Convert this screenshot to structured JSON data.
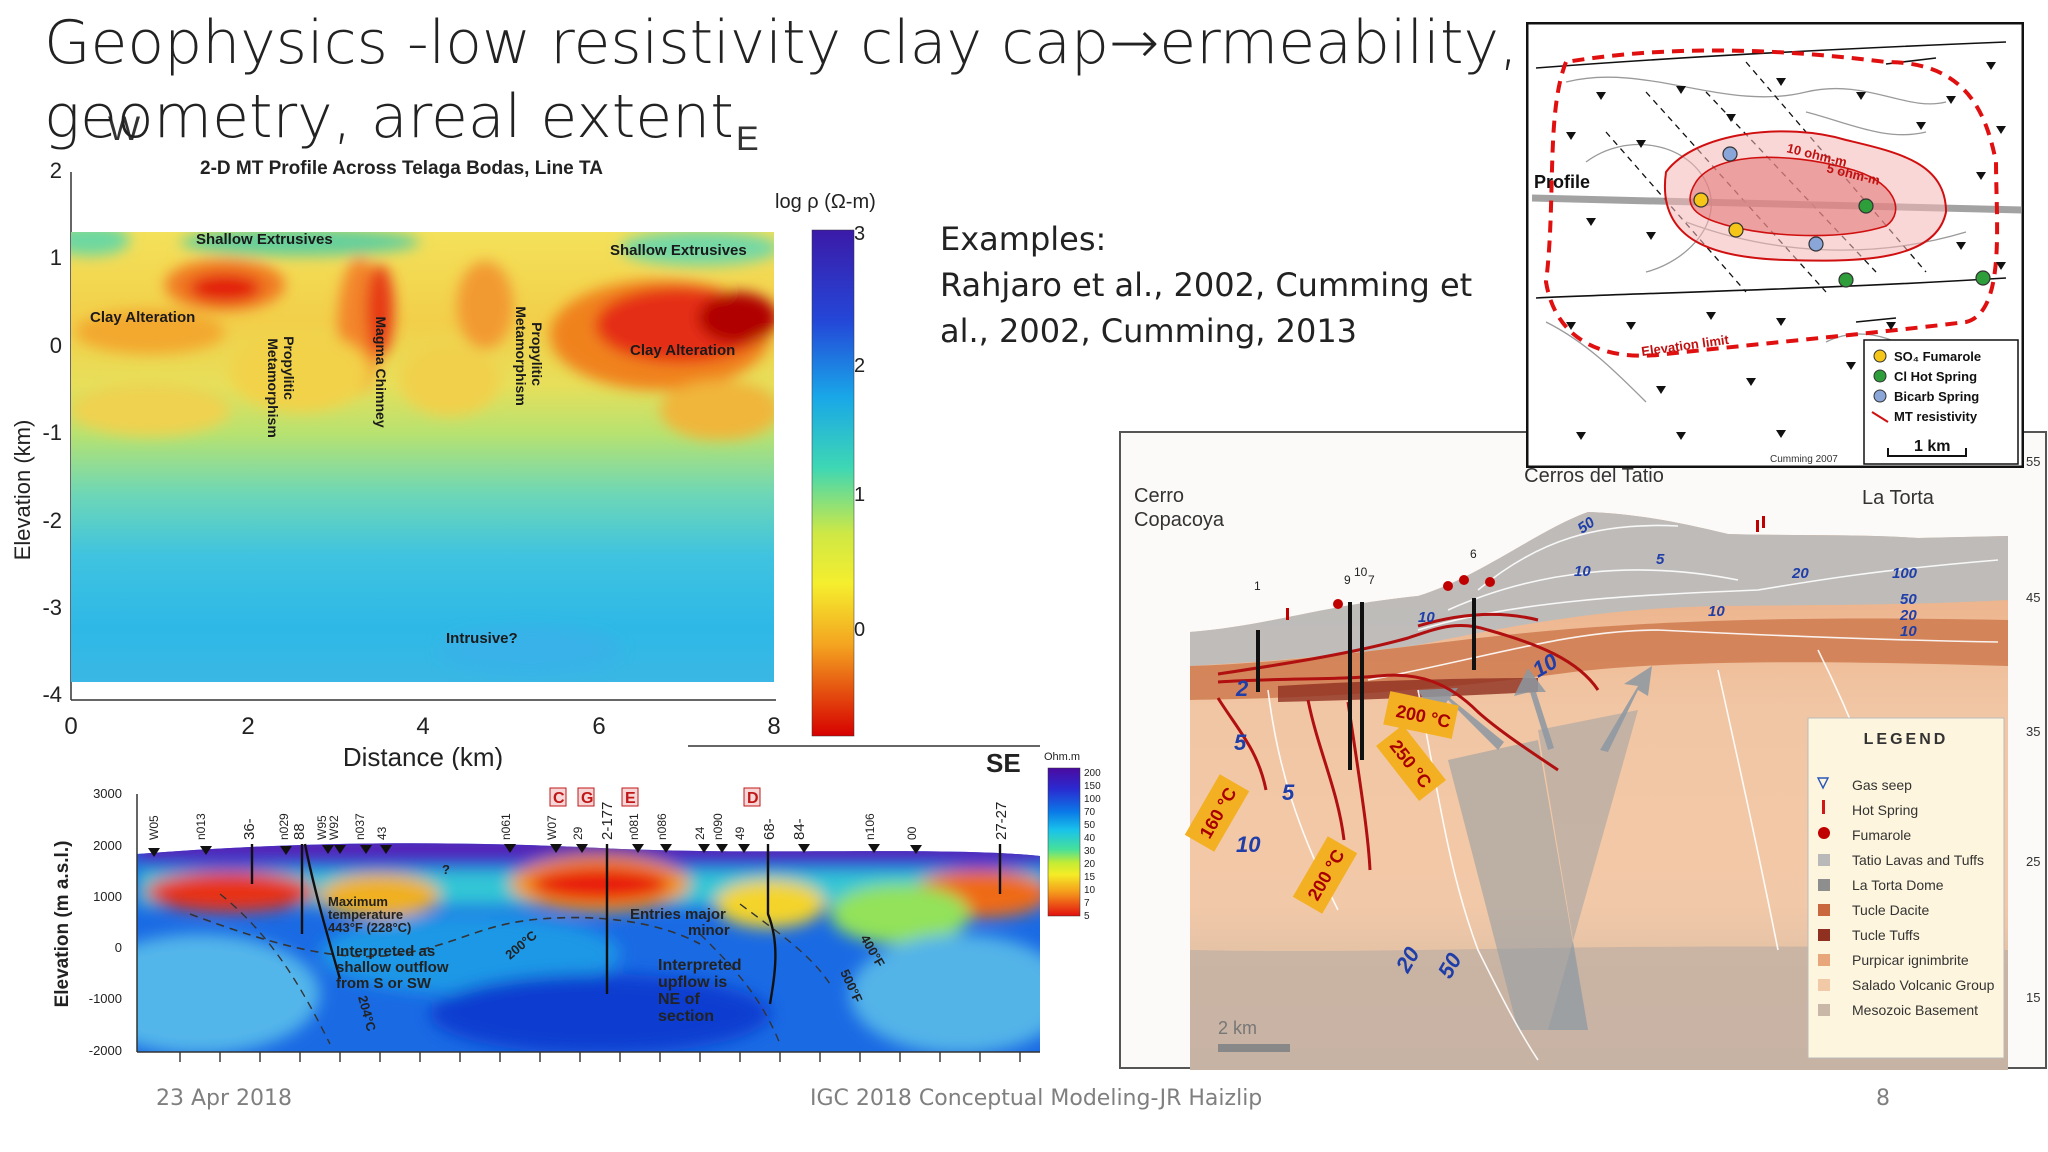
{
  "slide": {
    "title": "Geophysics -low resistivity clay cap→ermeability, geometry, areal extent",
    "examples_heading": "Examples:",
    "examples_refs": "Rahjaro et al., 2002, Cumming et al., 2002, Cumming, 2013",
    "footer_date": "23 Apr 2018",
    "footer_center": "IGC 2018 Conceptual Modeling-JR Haizlip",
    "footer_page": "8"
  },
  "fig_mt": {
    "dir_w": "W",
    "dir_e": "E",
    "title": "2-D MT Profile Across Telaga Bodas, Line TA",
    "colorbar_label": "log ρ (Ω-m)",
    "colorbar_ticks": [
      "3",
      "2",
      "1",
      "0"
    ],
    "ylabel": "Elevation (km)",
    "xlabel": "Distance (km)",
    "yticks": [
      "2",
      "1",
      "0",
      "-1",
      "-2",
      "-3",
      "-4"
    ],
    "xticks": [
      "0",
      "2",
      "4",
      "6",
      "8"
    ],
    "labels": {
      "shallow_left": "Shallow Extrusives",
      "shallow_right": "Shallow Extrusives",
      "clay_left": "Clay Alteration",
      "clay_right": "Clay Alteration",
      "propylitic_1": "Propylitic",
      "propylitic_1b": "Metamorphism",
      "magma": "Magma Chimney",
      "propylitic_2": "Propylitic",
      "propylitic_2b": "Metamorphism",
      "intrusive": "Intrusive?"
    }
  },
  "fig_section": {
    "se_label": "SE",
    "colorbar_unit": "Ohm.m",
    "colorbar_ticks": [
      "200",
      "150",
      "100",
      "70",
      "50",
      "40",
      "30",
      "20",
      "15",
      "10",
      "7",
      "5"
    ],
    "ylabel": "Elevation (m a.s.l.)",
    "yticks": [
      "3000",
      "2000",
      "1000",
      "0",
      "-1000",
      "-2000"
    ],
    "wells": [
      "W05",
      "n013",
      "36-",
      "88",
      "n029",
      "W95",
      "W92",
      "n037",
      "43",
      "n061",
      "W07",
      "29",
      "2-177",
      "n081",
      "n086",
      "24",
      "n090",
      "49",
      "68-",
      "84-",
      "n106",
      "00",
      "27-27"
    ],
    "boxed_letters": [
      "C",
      "G",
      "E",
      "D"
    ],
    "annotations": {
      "max_temp": "Maximum",
      "max_temp_b": "temperature",
      "max_temp_c": "443°F (228°C)",
      "outflow_a": "Interpreted as",
      "outflow_b": "shallow  outflow",
      "outflow_c": "from S or SW",
      "entries": "Entries major",
      "entries_b": "minor",
      "upflow_a": "Interpreted",
      "upflow_b": "upflow is",
      "upflow_c": "NE of",
      "upflow_d": "section",
      "t204": "204°C",
      "t200": "200°C",
      "t400": "400°F",
      "t500": "500°F",
      "q": "?"
    }
  },
  "fig_map": {
    "profile_label": "Profile",
    "contour_10": "10 ohm-m",
    "contour_5": "5 ohm-m",
    "elevation_limit": "Elevation limit",
    "legend": [
      "SO₄ Fumarole",
      "Cl Hot Spring",
      "Bicarb Spring",
      "MT resistivity"
    ],
    "legend_colors": [
      "#f5c518",
      "#2e9e3a",
      "#8aa6d8",
      "#d01010"
    ],
    "scale": "1 km",
    "credit": "Cumming 2007"
  },
  "fig_tatio": {
    "cerro_a": "Cerro",
    "cerro_b": "Copacoya",
    "cerros": "Cerros del Tatio",
    "la_torta": "La Torta",
    "scale": "2 km",
    "right_ticks": [
      "55",
      "45",
      "35",
      "25",
      "15"
    ],
    "well_labels": [
      "1",
      "9",
      "10",
      "7",
      "6"
    ],
    "temps": [
      "200 °C",
      "250 °C",
      "160 °C",
      "200 °C"
    ],
    "contours": [
      "50",
      "10",
      "5",
      "20",
      "100",
      "50",
      "20",
      "10",
      "10",
      "10",
      "10",
      "2",
      "5",
      "5",
      "10",
      "20",
      "50"
    ],
    "legend_title": "LEGEND",
    "legend_items": [
      "Gas seep",
      "Hot Spring",
      "Fumarole",
      "Tatio Lavas and Tuffs",
      "La Torta Dome",
      "Tucle Dacite",
      "Tucle Tuffs",
      "Purpicar ignimbrite",
      "Salado Volcanic Group",
      "Mesozoic Basement"
    ],
    "legend_colors": [
      "#ffffff",
      "#d01818",
      "#c00000",
      "#b9b9b9",
      "#8e8e8e",
      "#c9683f",
      "#8f3020",
      "#e7a77a",
      "#f2c9a6",
      "#c9b7a8"
    ]
  }
}
